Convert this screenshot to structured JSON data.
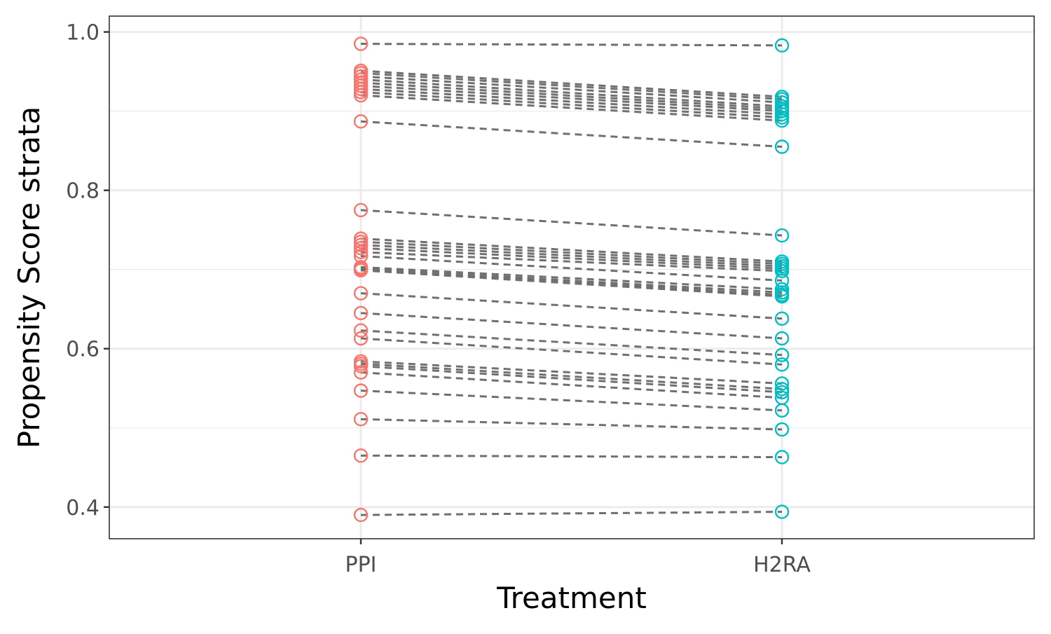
{
  "chart_data": {
    "type": "line",
    "xlabel": "Treatment",
    "ylabel": "Propensity Score strata",
    "categories": [
      "PPI",
      "H2RA"
    ],
    "ylim": [
      0.36,
      1.02
    ],
    "yticks": [
      0.4,
      0.6,
      0.8,
      1.0
    ],
    "ytick_labels": [
      "0.4",
      "0.6",
      "0.8",
      "1.0"
    ],
    "grid": true,
    "legend": "none",
    "colors": {
      "PPI": "#F8766D",
      "H2RA": "#00BFC4",
      "line": "#707070"
    },
    "pairs": [
      [
        0.985,
        0.983
      ],
      [
        0.951,
        0.918
      ],
      [
        0.948,
        0.915
      ],
      [
        0.944,
        0.911
      ],
      [
        0.94,
        0.906
      ],
      [
        0.936,
        0.903
      ],
      [
        0.932,
        0.9
      ],
      [
        0.928,
        0.896
      ],
      [
        0.924,
        0.892
      ],
      [
        0.92,
        0.888
      ],
      [
        0.887,
        0.855
      ],
      [
        0.775,
        0.743
      ],
      [
        0.739,
        0.71
      ],
      [
        0.735,
        0.707
      ],
      [
        0.731,
        0.704
      ],
      [
        0.727,
        0.701
      ],
      [
        0.722,
        0.698
      ],
      [
        0.717,
        0.686
      ],
      [
        0.703,
        0.675
      ],
      [
        0.701,
        0.671
      ],
      [
        0.7,
        0.668
      ],
      [
        0.699,
        0.666
      ],
      [
        0.67,
        0.638
      ],
      [
        0.645,
        0.613
      ],
      [
        0.623,
        0.592
      ],
      [
        0.613,
        0.58
      ],
      [
        0.584,
        0.556
      ],
      [
        0.581,
        0.549
      ],
      [
        0.578,
        0.545
      ],
      [
        0.57,
        0.538
      ],
      [
        0.547,
        0.522
      ],
      [
        0.511,
        0.498
      ],
      [
        0.465,
        0.463
      ],
      [
        0.39,
        0.394
      ]
    ]
  }
}
